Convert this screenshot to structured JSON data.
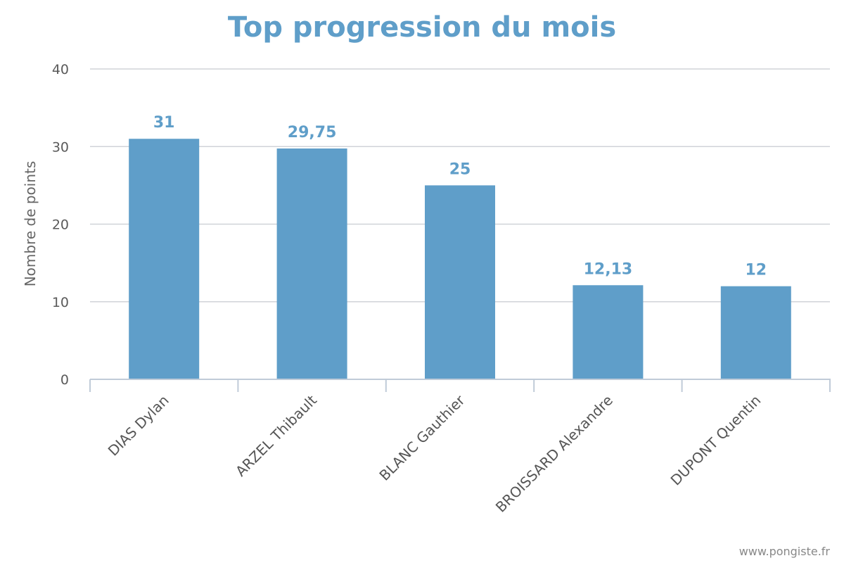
{
  "chart_data": {
    "type": "bar",
    "title": "Top progression du mois",
    "ylabel": "Nombre de points",
    "xlabel": "",
    "categories": [
      "DIAS Dylan",
      "ARZEL Thibault",
      "BLANC Gauthier",
      "BROISSARD Alexandre",
      "DUPONT Quentin"
    ],
    "values": [
      31,
      29.75,
      25,
      12.13,
      12
    ],
    "data_labels": [
      "31",
      "29,75",
      "25",
      "12,13",
      "12"
    ],
    "ylim": [
      0,
      40
    ],
    "yticks": [
      0,
      10,
      20,
      30,
      40
    ],
    "grid": true,
    "legend": "none",
    "colors": {
      "bar": "#5f9ec9",
      "title": "#5f9ec9",
      "data_label": "#5f9ec9",
      "grid": "#d0d3d8",
      "axis": "#c0cbd8"
    }
  },
  "credit": "www.pongiste.fr"
}
